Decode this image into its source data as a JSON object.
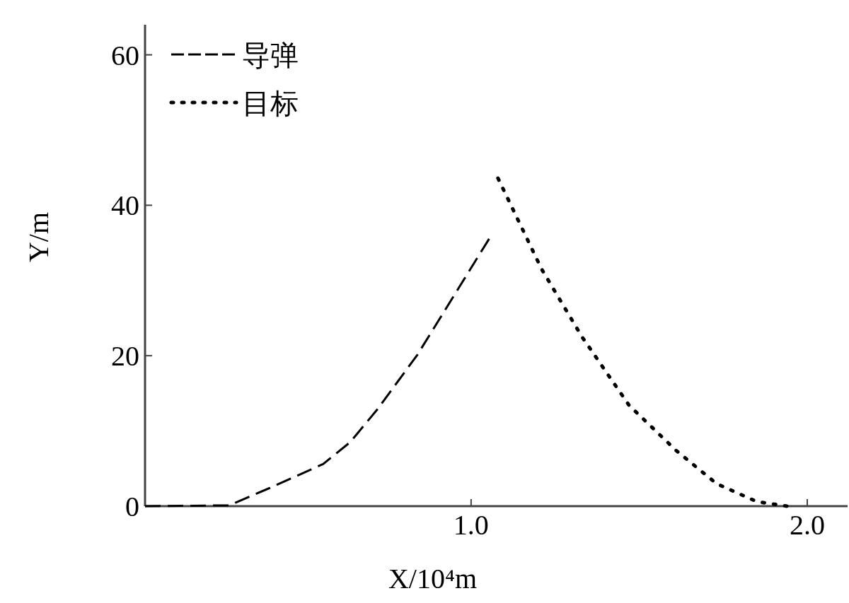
{
  "chart_data": {
    "type": "line",
    "xlabel": "X/10⁴m",
    "ylabel": "Y/m",
    "xlim": [
      0.03,
      2.12
    ],
    "ylim": [
      0,
      64
    ],
    "xticks": [
      {
        "value": 1,
        "label": "1.0"
      },
      {
        "value": 2,
        "label": "2.0"
      }
    ],
    "yticks": [
      0,
      20,
      40,
      60
    ],
    "grid": false,
    "legend": "top left",
    "marker": "none",
    "series": [
      {
        "name": "导弹",
        "color": "#000000",
        "line_style": "dashed",
        "x": [
          0.03,
          0.28,
          0.4,
          0.56,
          0.64,
          0.72,
          0.84,
          0.92,
          1.06
        ],
        "values": [
          0,
          0.1,
          2.4,
          5.6,
          8.5,
          12.8,
          20.1,
          25.9,
          36
        ]
      },
      {
        "name": "目标",
        "color": "#000000",
        "line_style": "dotted",
        "x": [
          1.08,
          1.21,
          1.33,
          1.47,
          1.61,
          1.73,
          1.85,
          1.94
        ],
        "values": [
          43.6,
          31.5,
          22.5,
          13.4,
          7.4,
          3.0,
          0.6,
          0
        ]
      }
    ]
  }
}
